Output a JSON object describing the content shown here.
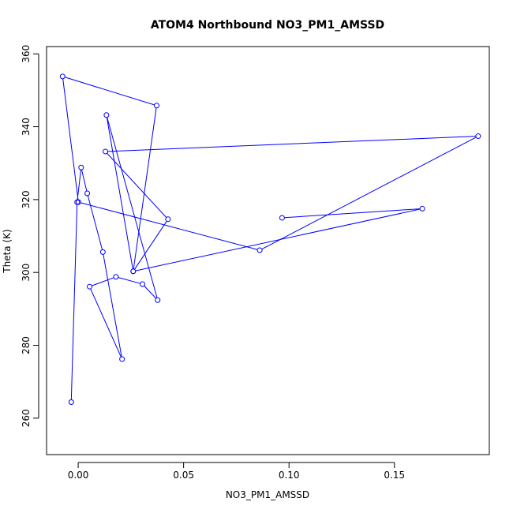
{
  "chart_data": {
    "type": "line",
    "title": "ATOM4 Northbound NO3_PM1_AMSSD",
    "xlabel": "NO3_PM1_AMSSD",
    "ylabel": "Theta (K)",
    "xlim": [
      -0.015,
      0.195
    ],
    "ylim": [
      250,
      362
    ],
    "grid": false,
    "line_color": "#0000ff",
    "marker": "open-circle",
    "x_ticks": [
      {
        "value": 0.0,
        "label": "0.00"
      },
      {
        "value": 0.05,
        "label": "0.05"
      },
      {
        "value": 0.1,
        "label": "0.10"
      },
      {
        "value": 0.15,
        "label": "0.15"
      }
    ],
    "y_ticks": [
      {
        "value": 260,
        "label": "260"
      },
      {
        "value": 280,
        "label": "280"
      },
      {
        "value": 300,
        "label": "300"
      },
      {
        "value": 320,
        "label": "320"
      },
      {
        "value": 340,
        "label": "340"
      },
      {
        "value": 360,
        "label": "360"
      }
    ],
    "series": [
      {
        "x": [
          0.0967,
          0.1632,
          0.0261,
          0.0426,
          0.0129,
          0.1897,
          0.0861,
          0.0001,
          -0.0074,
          0.0372,
          0.0261,
          0.0134,
          0.0377,
          0.0305,
          0.0179,
          0.0054,
          0.0208,
          0.0117,
          0.0043,
          0.0014,
          -0.0005,
          -0.0033
        ],
        "y": [
          315.0,
          317.5,
          300.3,
          314.6,
          333.2,
          337.4,
          306.1,
          319.3,
          353.8,
          345.8,
          300.3,
          343.2,
          292.4,
          296.8,
          298.8,
          296.1,
          276.2,
          305.6,
          321.7,
          328.8,
          319.3,
          264.4
        ]
      }
    ]
  }
}
